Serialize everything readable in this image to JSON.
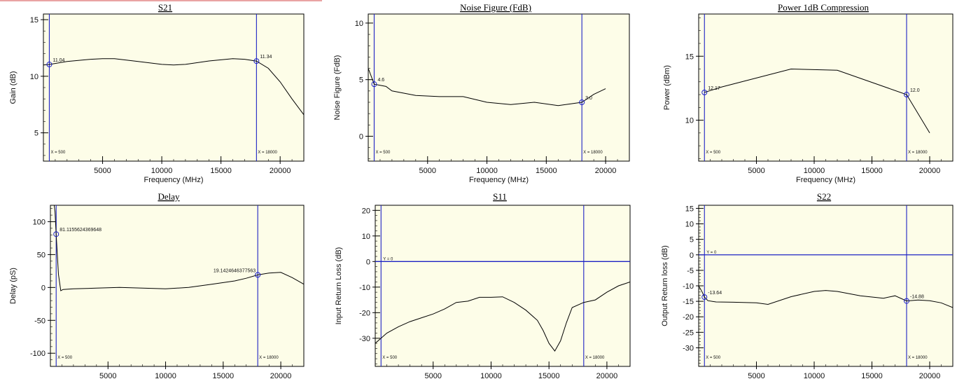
{
  "colors": {
    "plot_background": "#fdfde8",
    "curve": "#000000",
    "cursor": "#1d22c4",
    "marker": "#1d22c4",
    "axis": "#000000",
    "top_accent": "#e9a3a3"
  },
  "chart_data": [
    {
      "id": "s21",
      "type": "line",
      "title": "S21",
      "xlabel": "Frequency (MHz)",
      "ylabel": "Gain (dB)",
      "xlim": [
        0,
        22000
      ],
      "ylim": [
        2.5,
        15.5
      ],
      "xticks": [
        5000,
        10000,
        15000,
        20000
      ],
      "yticks": [
        5,
        10,
        15
      ],
      "x": [
        0,
        500,
        2000,
        4000,
        5000,
        6000,
        8000,
        10000,
        11000,
        12000,
        14000,
        16000,
        17000,
        18000,
        19000,
        20000,
        21000,
        22000
      ],
      "y": [
        11.0,
        11.04,
        11.3,
        11.5,
        11.55,
        11.55,
        11.3,
        11.05,
        11.0,
        11.05,
        11.35,
        11.55,
        11.5,
        11.34,
        10.7,
        9.5,
        8.0,
        6.6
      ],
      "markers": [
        {
          "x": 500,
          "y": 11.04,
          "label": "11.04"
        },
        {
          "x": 18000,
          "y": 11.34,
          "label": "11.34"
        }
      ],
      "vlines": [
        {
          "x": 500,
          "label": "X = 500"
        },
        {
          "x": 18000,
          "label": "X = 18000"
        }
      ],
      "hlines": []
    },
    {
      "id": "nf",
      "type": "line",
      "title": "Noise Figure (FdB)",
      "xlabel": "Frequency (MHz)",
      "ylabel": "Noise Figure (FdB)",
      "xlim": [
        0,
        22000
      ],
      "ylim": [
        -2.2,
        10.8
      ],
      "xticks": [
        5000,
        10000,
        15000,
        20000
      ],
      "yticks": [
        0,
        5,
        10
      ],
      "x": [
        0,
        500,
        1000,
        1500,
        2000,
        4000,
        6000,
        8000,
        10000,
        12000,
        14000,
        16000,
        18000,
        19000,
        20000
      ],
      "y": [
        6.0,
        4.6,
        4.5,
        4.4,
        4.0,
        3.6,
        3.5,
        3.5,
        3.0,
        2.8,
        3.0,
        2.7,
        3.0,
        3.7,
        4.2
      ],
      "markers": [
        {
          "x": 500,
          "y": 4.6,
          "label": "4.6"
        },
        {
          "x": 18000,
          "y": 3.0,
          "label": "3.0"
        }
      ],
      "vlines": [
        {
          "x": 500,
          "label": "X = 500"
        },
        {
          "x": 18000,
          "label": "X = 18000"
        }
      ],
      "hlines": []
    },
    {
      "id": "p1db",
      "type": "line",
      "title": "Power 1dB Compression",
      "xlabel": "Frequency (MHz)",
      "ylabel": "Power (dBm)",
      "xlim": [
        0,
        22000
      ],
      "ylim": [
        6.8,
        18.3
      ],
      "xticks": [
        5000,
        10000,
        15000,
        20000
      ],
      "yticks": [
        10,
        15
      ],
      "x": [
        500,
        2000,
        8000,
        12000,
        18000,
        20000
      ],
      "y": [
        12.17,
        12.6,
        14.0,
        13.9,
        12.0,
        9.0
      ],
      "markers": [
        {
          "x": 500,
          "y": 12.17,
          "label": "12.17"
        },
        {
          "x": 18000,
          "y": 12.0,
          "label": "12.0"
        }
      ],
      "vlines": [
        {
          "x": 500,
          "label": "X = 500"
        },
        {
          "x": 18000,
          "label": "X = 18000"
        }
      ],
      "hlines": []
    },
    {
      "id": "delay",
      "type": "line",
      "title": "Delay",
      "xlabel": "Frequency (MHz)",
      "ylabel": "Delay (pS)",
      "xlim": [
        0,
        22000
      ],
      "ylim": [
        -120,
        125
      ],
      "xticks": [
        5000,
        10000,
        15000,
        20000
      ],
      "yticks": [
        -100,
        -50,
        0,
        50,
        100
      ],
      "x": [
        300,
        400,
        500,
        700,
        900,
        1100,
        2000,
        4000,
        6000,
        8000,
        10000,
        12000,
        14000,
        16000,
        17000,
        18000,
        19000,
        20000,
        21000,
        22000
      ],
      "y": [
        130,
        115,
        81.1,
        20,
        -5,
        -3,
        -2,
        -1,
        0,
        -1,
        -2,
        0,
        5,
        10,
        14,
        19.14,
        22,
        23,
        15,
        5
      ],
      "markers": [
        {
          "x": 500,
          "y": 81.1155624369648,
          "label": "81.1155624369648"
        },
        {
          "x": 18000,
          "y": 19.1424646377563,
          "label": "19.1424646377563"
        }
      ],
      "vlines": [
        {
          "x": 500,
          "label": "X = 500"
        },
        {
          "x": 18000,
          "label": "X = 18000"
        }
      ],
      "hlines": []
    },
    {
      "id": "s11",
      "type": "line",
      "title": "S11",
      "xlabel": "Frequency (MHz)",
      "ylabel": "Input Return Loss (dB)",
      "xlim": [
        0,
        22000
      ],
      "ylim": [
        -41,
        22
      ],
      "xticks": [
        5000,
        10000,
        15000,
        20000
      ],
      "yticks": [
        -30,
        -20,
        -10,
        0,
        10,
        20
      ],
      "x": [
        0,
        500,
        1000,
        2000,
        3000,
        4000,
        5000,
        6000,
        7000,
        8000,
        9000,
        10000,
        11000,
        12000,
        13000,
        14000,
        14500,
        15000,
        15500,
        16000,
        16500,
        17000,
        18000,
        19000,
        20000,
        21000,
        22000
      ],
      "y": [
        -32,
        -30,
        -28,
        -25.5,
        -23.5,
        -22,
        -20.5,
        -18.5,
        -16,
        -15.5,
        -14,
        -14,
        -13.8,
        -16,
        -19,
        -23,
        -27,
        -32,
        -35,
        -31,
        -24,
        -18,
        -16,
        -15,
        -12,
        -9.5,
        -8
      ],
      "markers": [],
      "vlines": [
        {
          "x": 500,
          "label": "X = 500"
        },
        {
          "x": 18000,
          "label": "X = 18000"
        }
      ],
      "hlines": [
        {
          "y": 0,
          "label": "Y = 0"
        }
      ]
    },
    {
      "id": "s22",
      "type": "line",
      "title": "S22",
      "xlabel": "Frequency (MHz)",
      "ylabel": "Output Return loss (dB)",
      "xlim": [
        0,
        22000
      ],
      "ylim": [
        -36,
        16
      ],
      "xticks": [
        5000,
        10000,
        15000,
        20000
      ],
      "yticks": [
        -30,
        -25,
        -20,
        -15,
        -10,
        -5,
        0,
        5,
        10,
        15
      ],
      "x": [
        0,
        300,
        500,
        800,
        1500,
        3000,
        5000,
        6000,
        8000,
        10000,
        11000,
        12000,
        14000,
        16000,
        17000,
        18000,
        19000,
        20000,
        21000,
        22000
      ],
      "y": [
        -10,
        -12,
        -13.64,
        -14.8,
        -15.2,
        -15.3,
        -15.5,
        -16,
        -13.5,
        -11.8,
        -11.5,
        -11.8,
        -13.2,
        -14,
        -13.2,
        -14.88,
        -14.6,
        -14.8,
        -15.5,
        -17
      ],
      "markers": [
        {
          "x": 500,
          "y": -13.64,
          "label": "-13.64"
        },
        {
          "x": 18000,
          "y": -14.88,
          "label": "-14.88"
        }
      ],
      "vlines": [
        {
          "x": 500,
          "label": "X = 500"
        },
        {
          "x": 18000,
          "label": "X = 18000"
        }
      ],
      "hlines": [
        {
          "y": 0,
          "label": "Y = 0"
        }
      ]
    }
  ]
}
